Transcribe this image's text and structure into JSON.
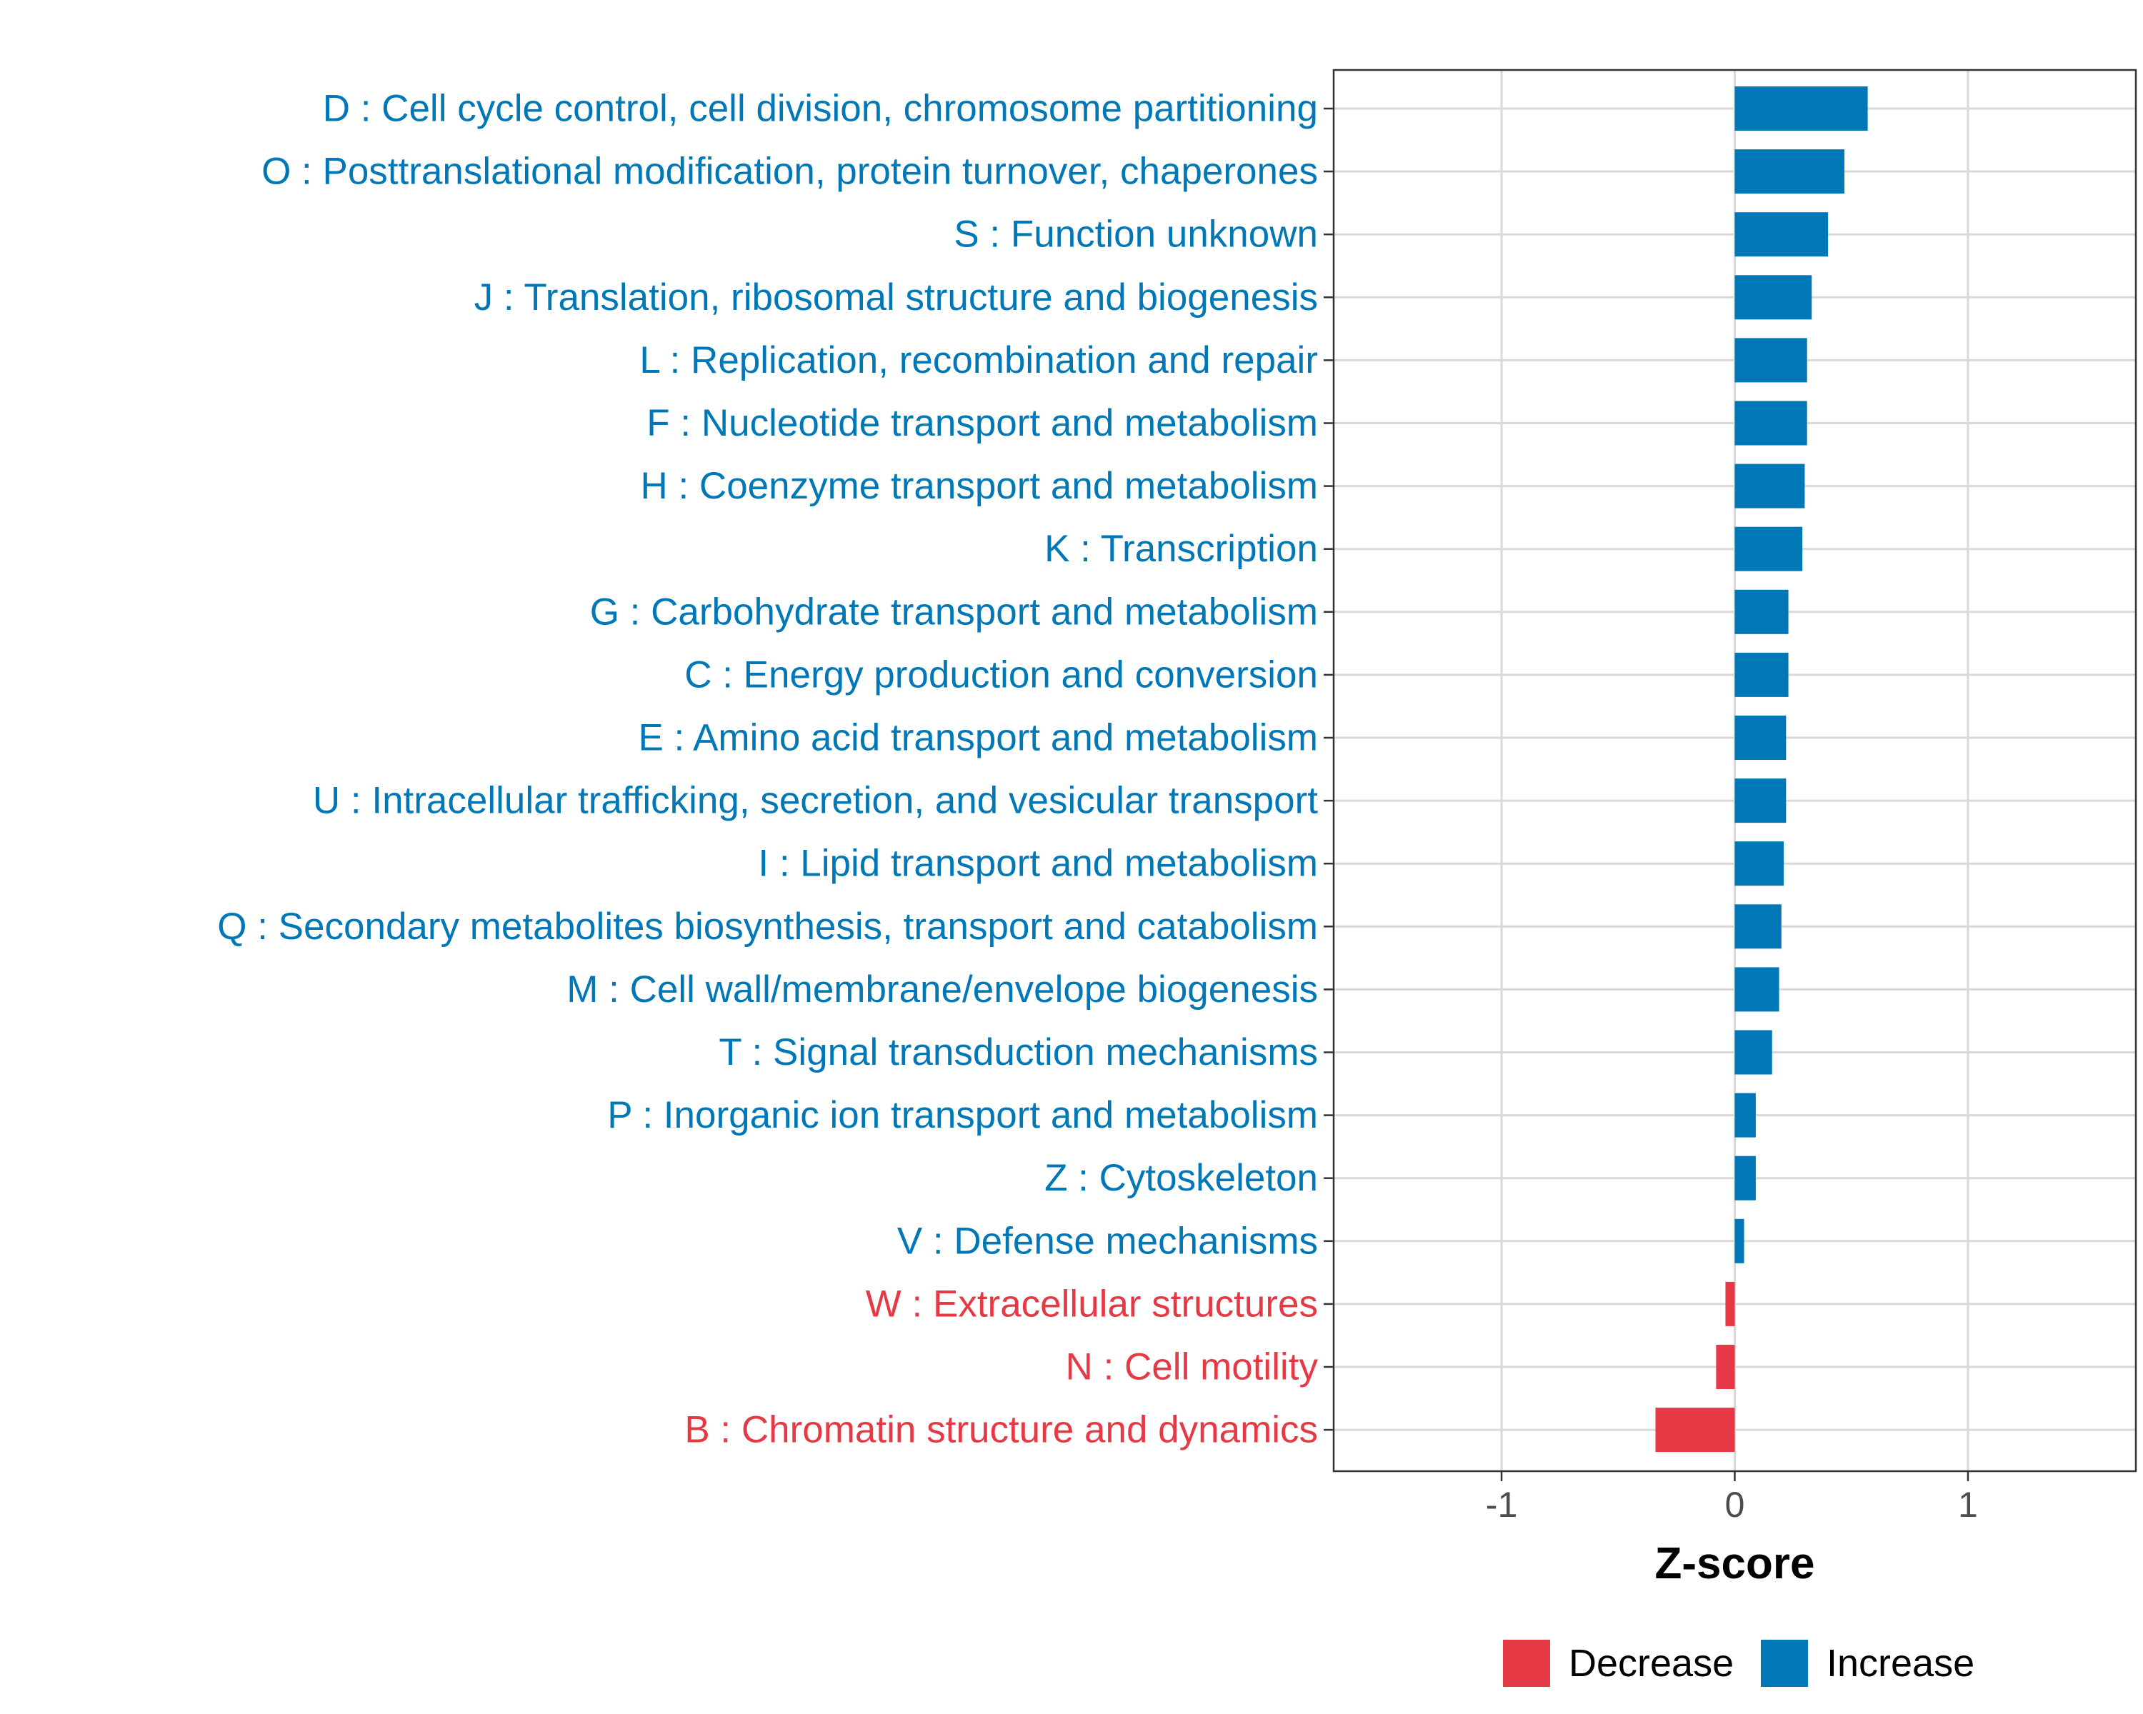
{
  "chart_data": {
    "type": "bar",
    "orientation": "horizontal",
    "xlabel": "Z-score",
    "xlim": [
      -1.72,
      1.72
    ],
    "xticks": [
      -1,
      0,
      1
    ],
    "xtick_labels": [
      "-1",
      "0",
      "1"
    ],
    "grid": true,
    "legend_position": "bottom",
    "colors": {
      "Decrease": "#e63946",
      "Increase": "#0077b6"
    },
    "legend": [
      {
        "key": "Decrease",
        "label": "Decrease"
      },
      {
        "key": "Increase",
        "label": "Increase"
      }
    ],
    "bars": [
      {
        "label": "D : Cell cycle control, cell division, chromosome partitioning",
        "value": 0.57,
        "direction": "Increase"
      },
      {
        "label": "O : Posttranslational modification, protein turnover, chaperones",
        "value": 0.47,
        "direction": "Increase"
      },
      {
        "label": "S : Function unknown",
        "value": 0.4,
        "direction": "Increase"
      },
      {
        "label": "J : Translation, ribosomal structure and biogenesis",
        "value": 0.33,
        "direction": "Increase"
      },
      {
        "label": "L : Replication, recombination and repair",
        "value": 0.31,
        "direction": "Increase"
      },
      {
        "label": "F : Nucleotide transport and metabolism",
        "value": 0.31,
        "direction": "Increase"
      },
      {
        "label": "H : Coenzyme transport and metabolism",
        "value": 0.3,
        "direction": "Increase"
      },
      {
        "label": "K : Transcription",
        "value": 0.29,
        "direction": "Increase"
      },
      {
        "label": "G : Carbohydrate transport and metabolism",
        "value": 0.23,
        "direction": "Increase"
      },
      {
        "label": "C : Energy production and conversion",
        "value": 0.23,
        "direction": "Increase"
      },
      {
        "label": "E : Amino acid transport and metabolism",
        "value": 0.22,
        "direction": "Increase"
      },
      {
        "label": "U : Intracellular trafficking, secretion, and vesicular transport",
        "value": 0.22,
        "direction": "Increase"
      },
      {
        "label": "I : Lipid transport and metabolism",
        "value": 0.21,
        "direction": "Increase"
      },
      {
        "label": "Q : Secondary metabolites biosynthesis, transport and catabolism",
        "value": 0.2,
        "direction": "Increase"
      },
      {
        "label": "M : Cell wall/membrane/envelope biogenesis",
        "value": 0.19,
        "direction": "Increase"
      },
      {
        "label": "T : Signal transduction mechanisms",
        "value": 0.16,
        "direction": "Increase"
      },
      {
        "label": "P : Inorganic ion transport and metabolism",
        "value": 0.09,
        "direction": "Increase"
      },
      {
        "label": "Z : Cytoskeleton",
        "value": 0.09,
        "direction": "Increase"
      },
      {
        "label": "V : Defense mechanisms",
        "value": 0.04,
        "direction": "Increase"
      },
      {
        "label": "W : Extracellular structures",
        "value": -0.04,
        "direction": "Decrease"
      },
      {
        "label": "N : Cell motility",
        "value": -0.08,
        "direction": "Decrease"
      },
      {
        "label": "B : Chromatin structure and dynamics",
        "value": -0.34,
        "direction": "Decrease"
      }
    ]
  }
}
